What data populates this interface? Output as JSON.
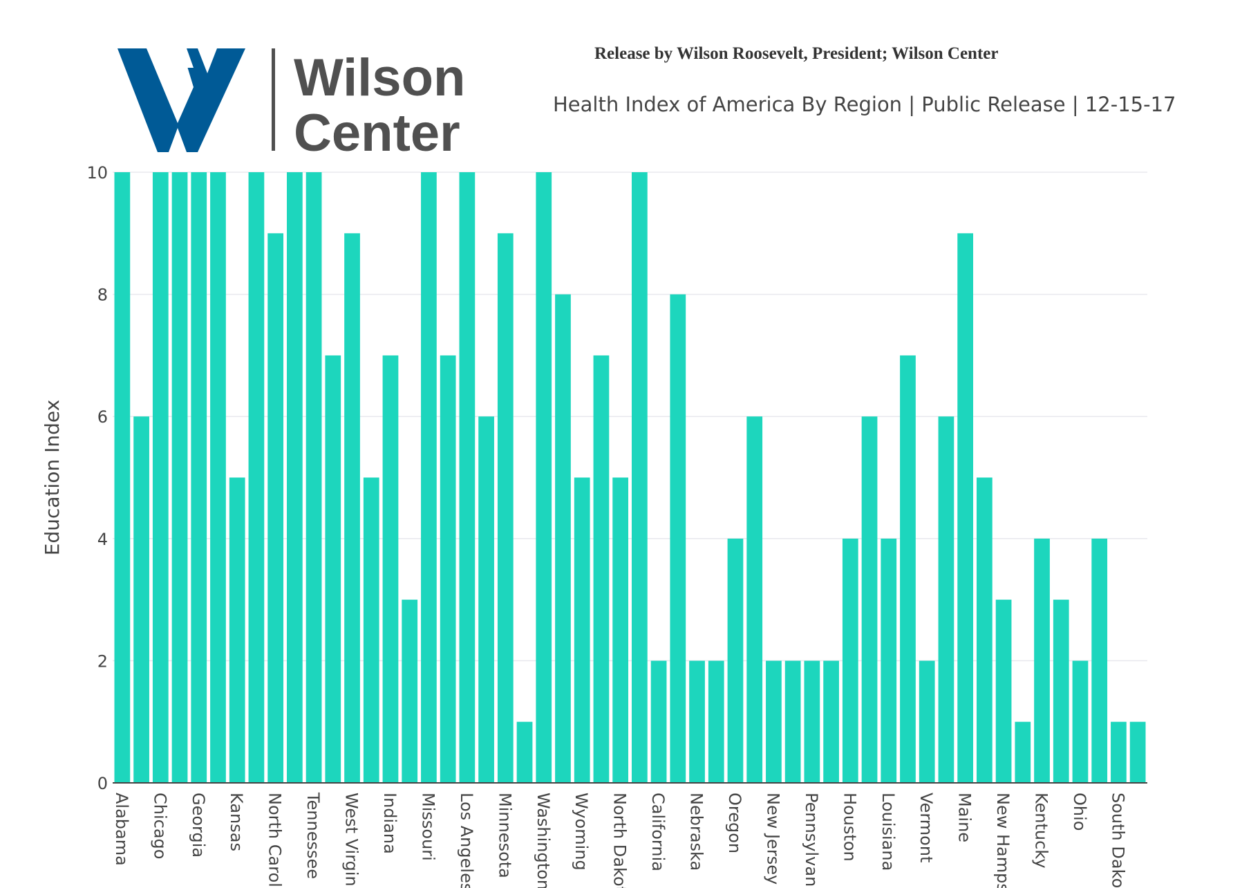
{
  "header": {
    "logo_text_line1": "Wilson",
    "logo_text_line2": "Center",
    "release_line": "Release by Wilson Roosevelt, President; Wilson Center",
    "subtitle": "Health Index of America By Region | Public Release | 12-15-17"
  },
  "colors": {
    "bar": "#1dd6bd",
    "logo_blue": "#005a96",
    "logo_gray": "#505050",
    "grid": "#e8e8ee",
    "axis_text": "#444444"
  },
  "chart_data": {
    "type": "bar",
    "title": "",
    "xlabel": "",
    "ylabel": "Education Index",
    "ylim": [
      0,
      10
    ],
    "yticks": [
      0,
      2,
      4,
      6,
      8,
      10
    ],
    "grid": "horizontal",
    "tick_labels_shown_every": 2,
    "categories": [
      "Alabama",
      "",
      "Chicago",
      "",
      "Georgia",
      "",
      "Kansas",
      "",
      "North Carolina",
      "",
      "Tennessee",
      "",
      "West Virginia",
      "",
      "Indiana",
      "",
      "Missouri",
      "",
      "Los Angeles",
      "",
      "Minnesota",
      "",
      "Washington",
      "",
      "Wyoming",
      "",
      "North Dakota",
      "",
      "California",
      "",
      "Nebraska",
      "",
      "Oregon",
      "",
      "New Jersey",
      "",
      "Pennsylvania",
      "",
      "Houston",
      "",
      "Louisiana",
      "",
      "Vermont",
      "",
      "Maine",
      "",
      "New Hampshire",
      "",
      "Kentucky",
      "",
      "Ohio",
      "",
      "South Dakota",
      ""
    ],
    "values": [
      10,
      6,
      10,
      10,
      10,
      10,
      5,
      10,
      9,
      10,
      10,
      7,
      9,
      5,
      7,
      3,
      10,
      7,
      10,
      6,
      9,
      1,
      10,
      8,
      5,
      7,
      5,
      10,
      2,
      8,
      2,
      2,
      4,
      6,
      2,
      2,
      2,
      2,
      4,
      6,
      4,
      7,
      2,
      6,
      9,
      5,
      3,
      1,
      4,
      3,
      2,
      4,
      1,
      1
    ]
  }
}
